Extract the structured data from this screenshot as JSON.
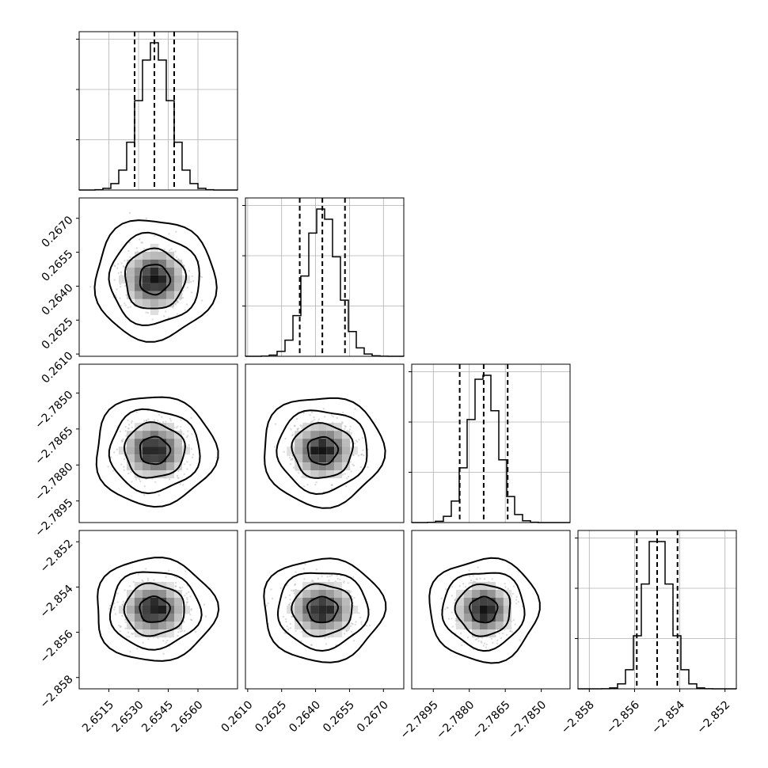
{
  "chart_data": {
    "type": "corner",
    "grid": true,
    "parameters": [
      {
        "range": [
          2.65,
          2.658
        ],
        "mean": 2.6538,
        "std": 0.0008,
        "quantiles": [
          2.6528,
          2.6538,
          2.6548
        ],
        "ticks": [
          2.6515,
          2.653,
          2.6545,
          2.656
        ],
        "tick_labels": [
          "2.6515",
          "2.6530",
          "2.6545",
          "2.6560"
        ]
      },
      {
        "range": [
          0.2609,
          0.2679
        ],
        "mean": 0.2643,
        "std": 0.0007,
        "quantiles": [
          0.2633,
          0.2643,
          0.2653
        ],
        "ticks": [
          0.261,
          0.2625,
          0.264,
          0.2655,
          0.267
        ],
        "tick_labels": [
          "0.2610",
          "0.2625",
          "0.2640",
          "0.2655",
          "0.2670"
        ]
      },
      {
        "range": [
          -2.7904,
          -2.7838
        ],
        "mean": -2.7874,
        "std": 0.0006,
        "quantiles": [
          -2.7884,
          -2.7874,
          -2.7864
        ],
        "ticks": [
          -2.7895,
          -2.788,
          -2.7865,
          -2.785
        ],
        "tick_labels": [
          "−2.7895",
          "−2.7880",
          "−2.7865",
          "−2.7850"
        ]
      },
      {
        "range": [
          -2.8585,
          -2.8515
        ],
        "mean": -2.855,
        "std": 0.0006,
        "quantiles": [
          -2.8559,
          -2.855,
          -2.8541
        ],
        "ticks": [
          -2.858,
          -2.856,
          -2.854,
          -2.852
        ],
        "tick_labels": [
          "−2.858",
          "−2.856",
          "−2.854",
          "−2.852"
        ]
      }
    ],
    "histogram_bins": 20,
    "histogram_ticks": 3,
    "scatter_samples": 700,
    "contour_levels_sigma": [
      0.5,
      1.0,
      1.5,
      2.0
    ]
  }
}
